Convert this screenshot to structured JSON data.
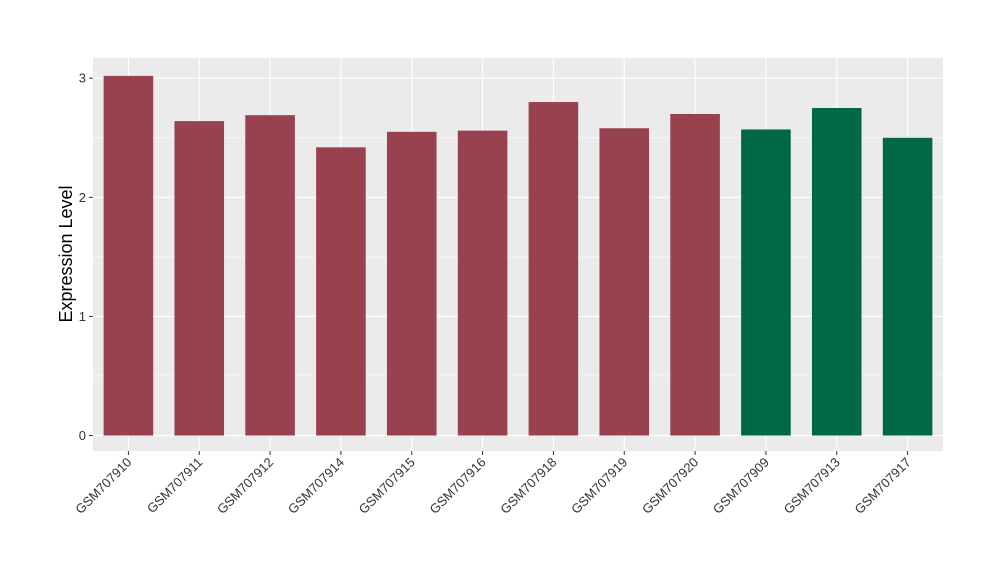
{
  "chart_data": {
    "type": "bar",
    "title": "",
    "xlabel": "",
    "ylabel": "Expression Level",
    "ylim": [
      -0.13,
      3.17
    ],
    "yticks": [
      0,
      1,
      2,
      3
    ],
    "grid": true,
    "categories": [
      "GSM707910",
      "GSM707911",
      "GSM707912",
      "GSM707914",
      "GSM707915",
      "GSM707916",
      "GSM707918",
      "GSM707919",
      "GSM707920",
      "GSM707909",
      "GSM707913",
      "GSM707917"
    ],
    "values": [
      3.02,
      2.64,
      2.69,
      2.42,
      2.55,
      2.56,
      2.8,
      2.58,
      2.7,
      2.57,
      2.75,
      2.5
    ],
    "bar_colors": [
      "#99424f",
      "#99424f",
      "#99424f",
      "#99424f",
      "#99424f",
      "#99424f",
      "#99424f",
      "#99424f",
      "#99424f",
      "#006845",
      "#006845",
      "#006845"
    ],
    "panel_background": "#ebebeb",
    "gridline_color": "#ffffff"
  }
}
